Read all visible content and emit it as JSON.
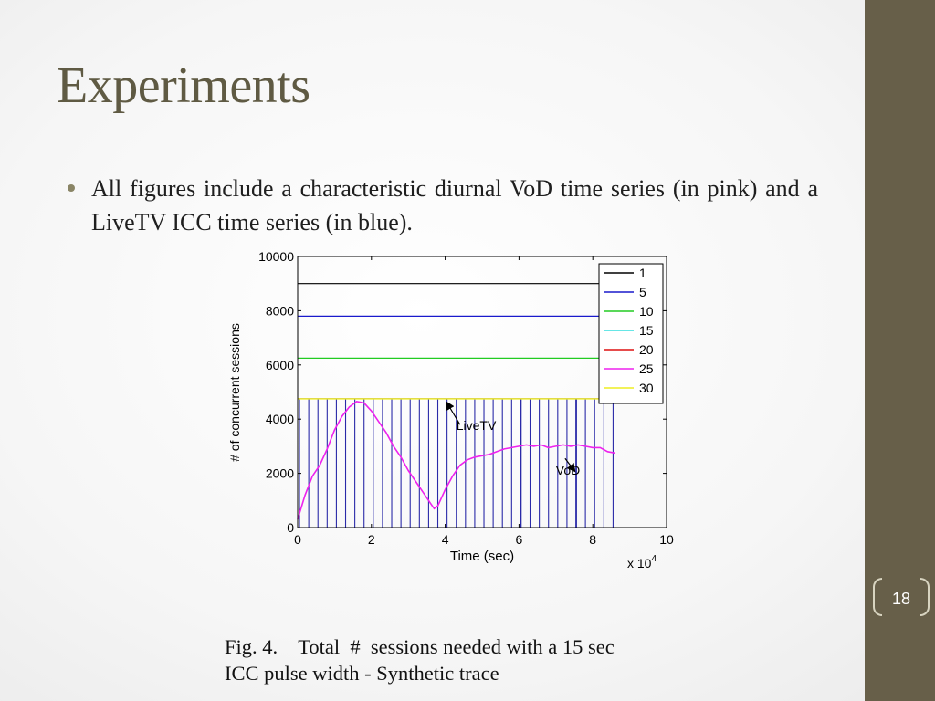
{
  "slide": {
    "title": "Experiments",
    "bullets": [
      "All figures include a characteristic diurnal VoD time series (in pink) and a LiveTV ICC time series (in blue)."
    ],
    "page_number": "18",
    "caption_line1": "Fig. 4.    Total  #  sessions needed with a 15 sec",
    "caption_line2": "ICC pulse width - Synthetic trace"
  },
  "colors": {
    "sidebar": "#675f49",
    "title": "#5f5a43"
  },
  "chart_data": {
    "type": "line",
    "title": "",
    "xlabel": "Time (sec)",
    "ylabel": "# of concurrent sessions",
    "x_multiplier_label": "x 10",
    "x_multiplier_exp": "4",
    "xlim": [
      0,
      10
    ],
    "ylim": [
      0,
      10000
    ],
    "x_ticks": [
      "0",
      "2",
      "4",
      "6",
      "8",
      "10"
    ],
    "y_ticks": [
      "0",
      "2000",
      "4000",
      "6000",
      "8000",
      "10000"
    ],
    "legend_position": "top-right",
    "grid": false,
    "series": [
      {
        "name": "1",
        "color": "#000000",
        "value": 9000
      },
      {
        "name": "5",
        "color": "#1a1acc",
        "value": 7800
      },
      {
        "name": "10",
        "color": "#22cc22",
        "value": 6250
      },
      {
        "name": "15",
        "color": "#33dddd",
        "value": 4750
      },
      {
        "name": "20",
        "color": "#dd1111",
        "value": 4750
      },
      {
        "name": "25",
        "color": "#ee22ee",
        "value": 4750
      },
      {
        "name": "30",
        "color": "#eeee22",
        "value": 4750
      }
    ],
    "livetv": {
      "color": "#2a2aa8",
      "peak": 4750,
      "x_start": 0.05,
      "x_end": 8.6,
      "spacing": 0.25
    },
    "vod": {
      "color": "#ee22ee",
      "x": [
        0,
        0.2,
        0.4,
        0.6,
        0.8,
        1.0,
        1.2,
        1.4,
        1.6,
        1.8,
        2.0,
        2.2,
        2.4,
        2.6,
        2.8,
        3.0,
        3.2,
        3.4,
        3.6,
        3.7,
        3.8,
        4.0,
        4.2,
        4.4,
        4.6,
        4.8,
        5.0,
        5.2,
        5.4,
        5.6,
        5.8,
        6.0,
        6.2,
        6.4,
        6.6,
        6.8,
        7.0,
        7.2,
        7.4,
        7.6,
        7.8,
        8.0,
        8.2,
        8.4,
        8.6
      ],
      "y": [
        300,
        1200,
        1900,
        2300,
        2900,
        3600,
        4100,
        4450,
        4650,
        4600,
        4300,
        3900,
        3500,
        3000,
        2600,
        2100,
        1700,
        1300,
        900,
        700,
        800,
        1400,
        1900,
        2300,
        2500,
        2600,
        2650,
        2700,
        2800,
        2900,
        2950,
        3000,
        3050,
        3000,
        3050,
        2950,
        3000,
        3050,
        3000,
        3050,
        3000,
        2950,
        2950,
        2800,
        2750
      ]
    },
    "annotations": [
      {
        "text": "LiveTV",
        "label_x": 4.3,
        "label_y": 3600,
        "arrow_from": [
          4.4,
          3800
        ],
        "arrow_to": [
          4.05,
          4600
        ]
      },
      {
        "text": "VoD",
        "label_x": 7.0,
        "label_y": 1950,
        "arrow_from": [
          7.25,
          2550
        ],
        "arrow_to": [
          7.5,
          2100
        ]
      }
    ]
  }
}
